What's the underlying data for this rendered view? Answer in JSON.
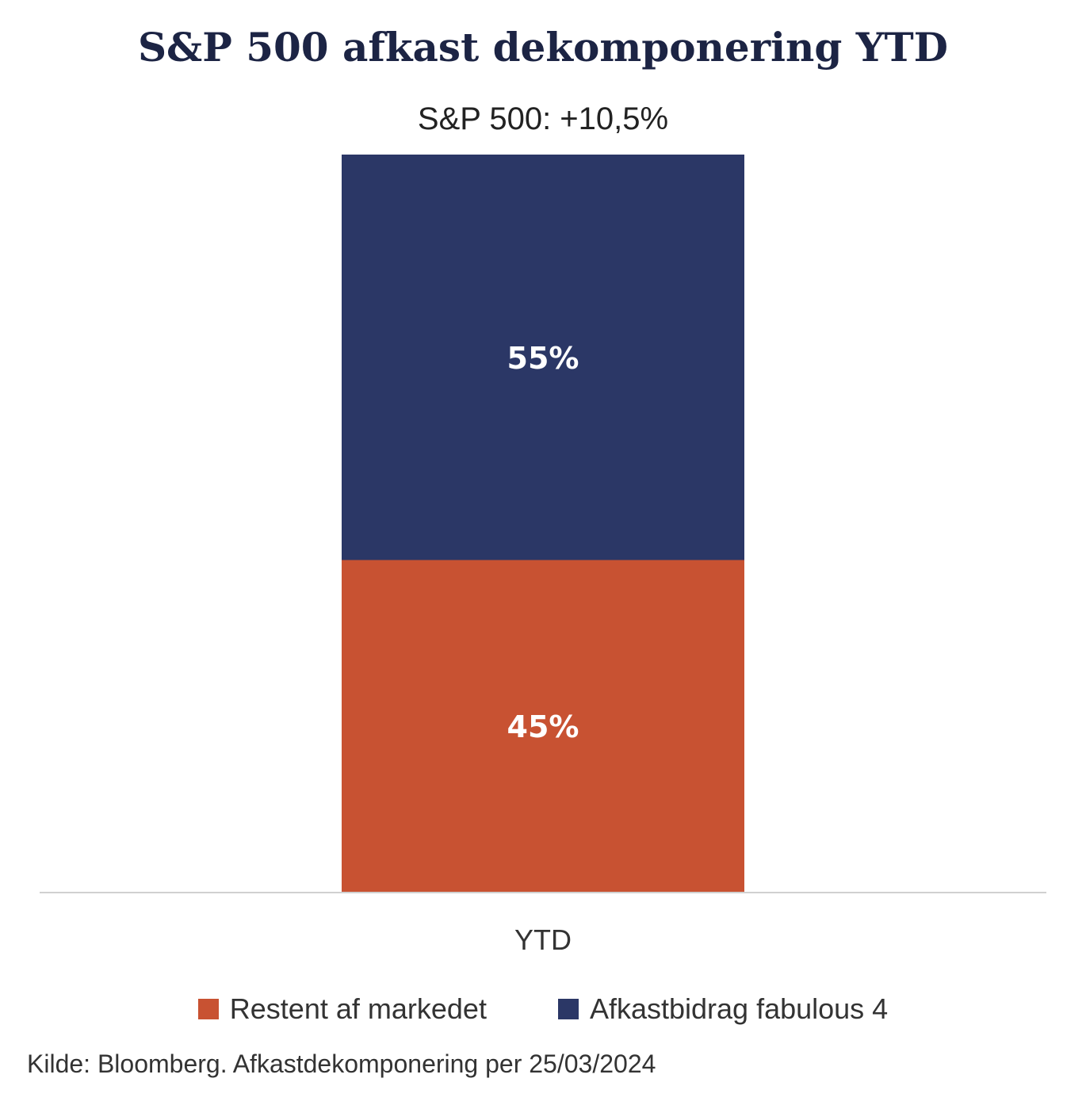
{
  "chart_data": {
    "type": "bar",
    "stacked": true,
    "title": "S&P 500 afkast dekomponering YTD",
    "subtitle": "S&P 500: +10,5%",
    "categories": [
      "YTD"
    ],
    "series": [
      {
        "name": "Restent af markedet",
        "values": [
          45
        ],
        "label": "45%",
        "color": "#c85232"
      },
      {
        "name": "Afkastbidrag fabulous 4",
        "values": [
          55
        ],
        "label": "55%",
        "color": "#2b3766"
      }
    ],
    "ylim": [
      0,
      100
    ],
    "grid": false,
    "legend_position": "bottom",
    "source": "Kilde: Bloomberg. Afkastdekomponering per 25/03/2024"
  },
  "colors": {
    "title": "#1c2444",
    "axis": "#d0d0d0",
    "data_label": "#ffffff"
  }
}
